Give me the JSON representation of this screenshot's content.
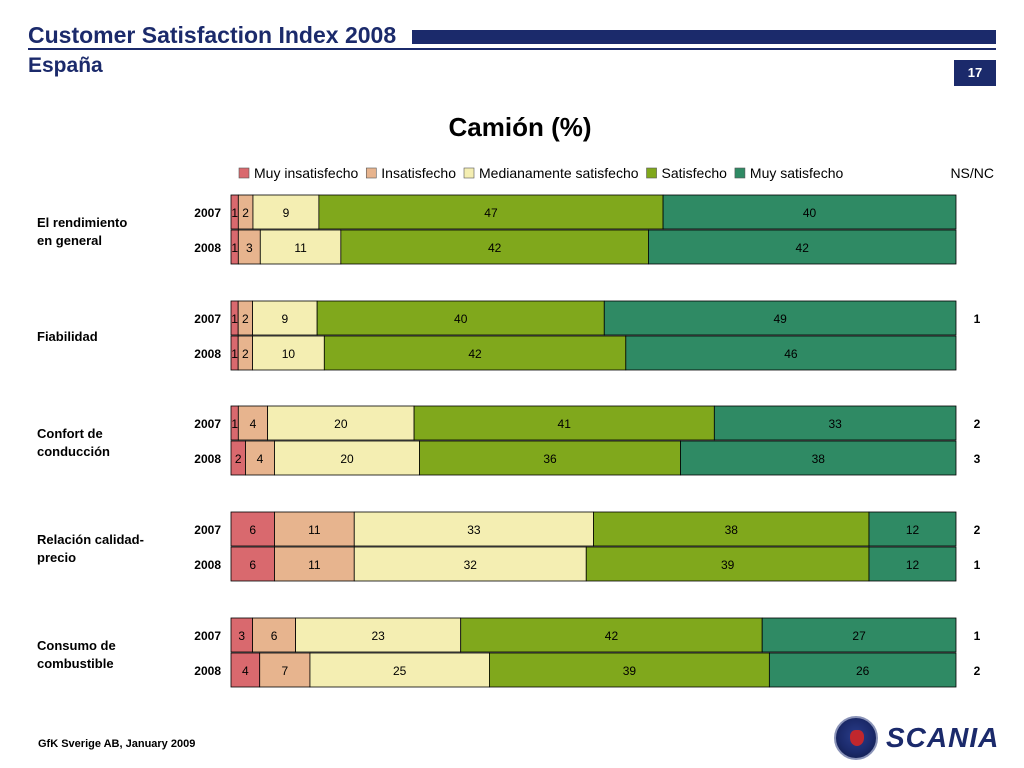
{
  "header": {
    "title": "Customer Satisfaction Index 2008",
    "subtitle": "España",
    "page_number": "17"
  },
  "footer": {
    "source": "GfK Sverige AB, January 2009"
  },
  "logo": {
    "brand": "SCANIA"
  },
  "colors": {
    "brand": "#1b2a6b",
    "muy_insatisfecho": "#d9696e",
    "insatisfecho": "#e7b48e",
    "medianamente_satisfecho": "#f4eeb2",
    "satisfecho": "#80a81c",
    "muy_satisfecho": "#2f8a64"
  },
  "chart_data": {
    "type": "bar",
    "orientation": "horizontal",
    "stacked": true,
    "title": "Camión (%)",
    "legend_position": "top",
    "nsnc_label": "NS/NC",
    "series": [
      {
        "name": "Muy insatisfecho",
        "color": "#d9696e"
      },
      {
        "name": "Insatisfecho",
        "color": "#e7b48e"
      },
      {
        "name": "Medianamente satisfecho",
        "color": "#f4eeb2"
      },
      {
        "name": "Satisfecho",
        "color": "#80a81c"
      },
      {
        "name": "Muy satisfecho",
        "color": "#2f8a64"
      }
    ],
    "groups": [
      {
        "category": "El rendimiento en general",
        "label_lines": [
          "El rendimiento",
          "en general"
        ],
        "rows": [
          {
            "year": "2007",
            "values": [
              1,
              2,
              9,
              47,
              40
            ],
            "nsnc": ""
          },
          {
            "year": "2008",
            "values": [
              1,
              3,
              11,
              42,
              42
            ],
            "nsnc": ""
          }
        ]
      },
      {
        "category": "Fiabilidad",
        "label_lines": [
          "Fiabilidad"
        ],
        "rows": [
          {
            "year": "2007",
            "values": [
              1,
              2,
              9,
              40,
              49
            ],
            "nsnc": "1"
          },
          {
            "year": "2008",
            "values": [
              1,
              2,
              10,
              42,
              46
            ],
            "nsnc": ""
          }
        ]
      },
      {
        "category": "Confort de conducción",
        "label_lines": [
          "Confort de",
          "conducción"
        ],
        "rows": [
          {
            "year": "2007",
            "values": [
              1,
              4,
              20,
              41,
              33
            ],
            "nsnc": "2"
          },
          {
            "year": "2008",
            "values": [
              2,
              4,
              20,
              36,
              38
            ],
            "nsnc": "3"
          }
        ]
      },
      {
        "category": "Relación calidad-precio",
        "label_lines": [
          "Relación calidad-",
          "precio"
        ],
        "rows": [
          {
            "year": "2007",
            "values": [
              6,
              11,
              33,
              38,
              12
            ],
            "nsnc": "2"
          },
          {
            "year": "2008",
            "values": [
              6,
              11,
              32,
              39,
              12
            ],
            "nsnc": "1"
          }
        ]
      },
      {
        "category": "Consumo de combustible",
        "label_lines": [
          "Consumo de",
          "combustible"
        ],
        "rows": [
          {
            "year": "2007",
            "values": [
              3,
              6,
              23,
              42,
              27
            ],
            "nsnc": "1"
          },
          {
            "year": "2008",
            "values": [
              4,
              7,
              25,
              39,
              26
            ],
            "nsnc": "2"
          }
        ]
      }
    ]
  }
}
